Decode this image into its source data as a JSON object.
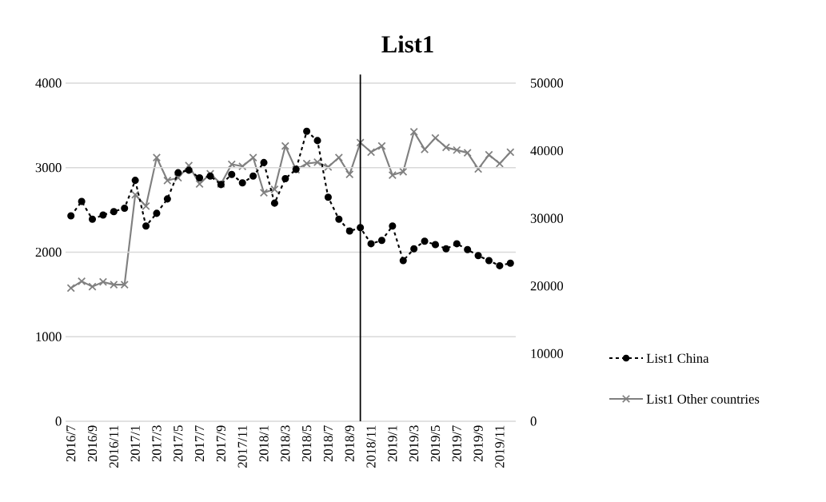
{
  "chart_data": {
    "type": "line",
    "title": "List1",
    "categories": [
      "2016/7",
      null,
      "2016/9",
      null,
      "2016/11",
      null,
      "2017/1",
      null,
      "2017/3",
      null,
      "2017/5",
      null,
      "2017/7",
      null,
      "2017/9",
      null,
      "2017/11",
      null,
      "2018/1",
      null,
      "2018/3",
      null,
      "2018/5",
      null,
      "2018/7",
      null,
      "2018/9",
      null,
      "2018/11",
      null,
      "2019/1",
      null,
      "2019/3",
      null,
      "2019/5",
      null,
      "2019/7",
      null,
      "2019/9",
      null,
      "2019/11",
      null
    ],
    "series": [
      {
        "name": "List1 China",
        "color": "#000000",
        "marker": "circle",
        "line_style": "dashed",
        "values": [
          2430,
          2600,
          2390,
          2440,
          2480,
          2520,
          2850,
          2310,
          2460,
          2630,
          2940,
          2970,
          2880,
          2900,
          2800,
          2920,
          2820,
          2900,
          3060,
          2580,
          2870,
          2980,
          3430,
          3320,
          2650,
          2390,
          2250,
          2290,
          2100,
          2140,
          2310,
          1900,
          2040,
          2130,
          2090,
          2040,
          2100,
          2030,
          1960,
          1900,
          1840,
          1870
        ]
      },
      {
        "name": "List1 Other countries",
        "color": "#808080",
        "marker": "cross",
        "line_style": "solid",
        "axis": "y2",
        "values": [
          19700,
          20700,
          19900,
          20600,
          20200,
          20200,
          33500,
          31800,
          39000,
          35600,
          36000,
          37800,
          35100,
          36600,
          35100,
          38000,
          37700,
          39000,
          33800,
          34300,
          40700,
          37200,
          38100,
          38300,
          37600,
          39000,
          36500,
          41200,
          39800,
          40700,
          36400,
          36900,
          42800,
          40200,
          41900,
          40500,
          40100,
          39700,
          37300,
          39400,
          38100,
          39800
        ]
      }
    ],
    "ylim": [
      0,
      4000
    ],
    "yticks": [
      0,
      1000,
      2000,
      3000,
      4000
    ],
    "y2lim": [
      0,
      50000
    ],
    "y2ticks": [
      0,
      10000,
      20000,
      30000,
      40000,
      50000
    ],
    "grid": "y",
    "legend": "right"
  }
}
